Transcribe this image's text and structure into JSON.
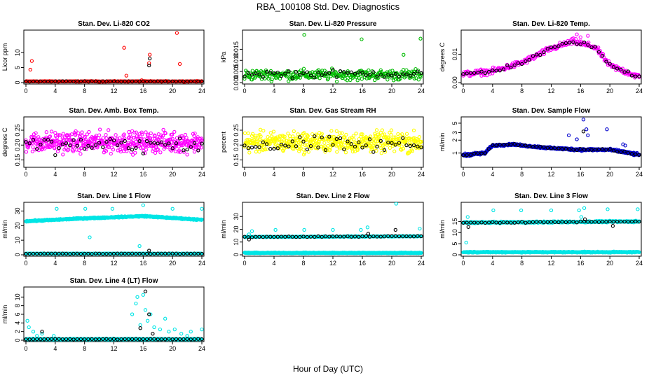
{
  "figure": {
    "title": "RBA_100108  Std. Dev. Diagnostics",
    "xlabel": "Hour of Day (UTC)"
  },
  "chart_data": [
    {
      "type": "scatter",
      "title": "Stan. Dev. Li-820 CO2",
      "ylabel": "Licor ppm",
      "xlim": [
        0,
        24
      ],
      "ylim": [
        0,
        17
      ],
      "x_ticks": [
        0,
        4,
        8,
        12,
        16,
        20,
        24
      ],
      "y_ticks": [
        0,
        5,
        10
      ],
      "series": [
        {
          "color": "#ff0000",
          "baseline": {
            "from": 0,
            "to": 24,
            "step": 0.083,
            "value": 0.4,
            "jitter": 0.15
          },
          "points": [
            [
              0.6,
              4.3
            ],
            [
              0.8,
              7.2
            ],
            [
              13.4,
              11.6
            ],
            [
              13.7,
              2.3
            ],
            [
              16.9,
              9.3
            ],
            [
              16.8,
              6.5
            ],
            [
              20.6,
              16.5
            ],
            [
              21.0,
              6.2
            ],
            [
              15.8,
              0.8
            ]
          ]
        },
        {
          "color": "#000000",
          "baseline": {
            "from": 0,
            "to": 24,
            "step": 0.5,
            "value": 0.4,
            "jitter": 0.1
          },
          "points": [
            [
              16.9,
              8.0
            ],
            [
              16.8,
              5.7
            ]
          ]
        }
      ]
    },
    {
      "type": "scatter",
      "title": "Stan. Dev. Li-820 Pressure",
      "ylabel": "kPa",
      "xlim": [
        0,
        24
      ],
      "ylim": [
        0,
        0.023
      ],
      "x_ticks": [
        0,
        4,
        8,
        12,
        16,
        20,
        24
      ],
      "y_ticks": [
        0.0,
        0.005,
        0.01,
        0.015
      ],
      "series": [
        {
          "color": "#00bb00",
          "baseline": {
            "from": 0,
            "to": 24,
            "step": 0.083,
            "value": 0.0035,
            "jitter": 0.0035
          },
          "points": [
            [
              8.1,
              0.0215
            ],
            [
              15.9,
              0.0195
            ],
            [
              21.6,
              0.0125
            ],
            [
              23.9,
              0.0198
            ]
          ]
        },
        {
          "color": "#000000",
          "baseline": {
            "from": 0,
            "to": 24,
            "step": 0.5,
            "value": 0.004,
            "jitter": 0.0025
          },
          "points": []
        }
      ]
    },
    {
      "type": "scatter",
      "title": "Stan. Dev. Li-820 Temp.",
      "ylabel": "degrees C",
      "xlim": [
        0,
        24
      ],
      "ylim": [
        0,
        0.018
      ],
      "x_ticks": [
        0,
        4,
        8,
        12,
        16,
        20,
        24
      ],
      "y_ticks": [
        0.0,
        0.01
      ],
      "series": [
        {
          "color": "#ff00ff",
          "curve": [
            [
              0,
              0.003
            ],
            [
              4,
              0.004
            ],
            [
              8,
              0.007
            ],
            [
              12,
              0.012
            ],
            [
              15,
              0.0145
            ],
            [
              18,
              0.0125
            ],
            [
              20,
              0.006
            ],
            [
              22,
              0.004
            ],
            [
              24,
              0.002
            ]
          ],
          "step": 0.083,
          "jitter": 0.0015,
          "points": [
            [
              15.5,
              0.017
            ],
            [
              17.0,
              0.0165
            ],
            [
              16.0,
              0.016
            ]
          ]
        },
        {
          "color": "#000000",
          "curve": [
            [
              0,
              0.003
            ],
            [
              4,
              0.004
            ],
            [
              8,
              0.007
            ],
            [
              12,
              0.012
            ],
            [
              15,
              0.0145
            ],
            [
              18,
              0.0125
            ],
            [
              20,
              0.006
            ],
            [
              22,
              0.004
            ],
            [
              24,
              0.002
            ]
          ],
          "step": 0.5,
          "jitter": 0.001,
          "points": []
        }
      ]
    },
    {
      "type": "scatter",
      "title": "Stan. Dev. Amb. Box Temp.",
      "ylabel": "degrees C",
      "xlim": [
        0,
        24
      ],
      "ylim": [
        0.13,
        0.29
      ],
      "x_ticks": [
        0,
        4,
        8,
        12,
        16,
        20,
        24
      ],
      "y_ticks": [
        0.15,
        0.2,
        0.25
      ],
      "series": [
        {
          "color": "#ff00ff",
          "baseline": {
            "from": 0,
            "to": 24,
            "step": 0.05,
            "value": 0.21,
            "jitter": 0.05
          },
          "points": []
        },
        {
          "color": "#000000",
          "baseline": {
            "from": 0,
            "to": 24,
            "step": 0.5,
            "value": 0.2,
            "jitter": 0.04
          },
          "points": []
        }
      ]
    },
    {
      "type": "scatter",
      "title": "Stan. Dev. Gas Stream RH",
      "ylabel": "percent",
      "xlim": [
        0,
        24
      ],
      "ylim": [
        0.13,
        0.29
      ],
      "x_ticks": [
        0,
        4,
        8,
        12,
        16,
        20,
        24
      ],
      "y_ticks": [
        0.15,
        0.2,
        0.25
      ],
      "series": [
        {
          "color": "#ffff00",
          "baseline": {
            "from": 0,
            "to": 24,
            "step": 0.05,
            "value": 0.21,
            "jitter": 0.05
          },
          "points": []
        },
        {
          "color": "#000000",
          "baseline": {
            "from": 0,
            "to": 24,
            "step": 0.5,
            "value": 0.2,
            "jitter": 0.04
          },
          "points": []
        }
      ]
    },
    {
      "type": "scatter",
      "title": "Stan. Dev. Sample Flow",
      "ylabel": "ml/min",
      "xlim": [
        0,
        24
      ],
      "ylim": [
        0.5,
        6.5
      ],
      "log_y": true,
      "x_ticks": [
        0,
        4,
        8,
        12,
        16,
        20,
        24
      ],
      "y_ticks": [
        1,
        2,
        3,
        5
      ],
      "series": [
        {
          "color": "#0000cc",
          "curve": [
            [
              0,
              0.9
            ],
            [
              3,
              1.0
            ],
            [
              4,
              1.5
            ],
            [
              7,
              1.6
            ],
            [
              8,
              1.5
            ],
            [
              12,
              1.3
            ],
            [
              16,
              1.2
            ],
            [
              20,
              1.2
            ],
            [
              24,
              0.9
            ]
          ],
          "step": 0.05,
          "jitter": 0.1,
          "points": [
            [
              14.4,
              2.6
            ],
            [
              15.5,
              2.1
            ],
            [
              16.4,
              6.1
            ],
            [
              16.8,
              3.6
            ],
            [
              17.0,
              2.6
            ],
            [
              19.6,
              3.6
            ],
            [
              21.8,
              1.6
            ],
            [
              22.1,
              1.5
            ]
          ]
        },
        {
          "color": "#000000",
          "curve": [
            [
              0,
              0.9
            ],
            [
              3,
              1.0
            ],
            [
              4,
              1.5
            ],
            [
              7,
              1.6
            ],
            [
              8,
              1.5
            ],
            [
              12,
              1.3
            ],
            [
              16,
              1.2
            ],
            [
              20,
              1.2
            ],
            [
              24,
              0.9
            ]
          ],
          "step": 0.5,
          "jitter": 0.06,
          "points": [
            [
              16.4,
              3.2
            ]
          ]
        }
      ]
    },
    {
      "type": "scatter",
      "title": "Stan. Dev. Line 1 Flow",
      "ylabel": "ml/min",
      "xlim": [
        0,
        24
      ],
      "ylim": [
        0,
        35
      ],
      "x_ticks": [
        0,
        4,
        8,
        12,
        16,
        20,
        24
      ],
      "y_ticks": [
        0,
        10,
        20,
        30
      ],
      "series": [
        {
          "color": "#00e5e5",
          "curve": [
            [
              0,
              23
            ],
            [
              8,
              25
            ],
            [
              16,
              26.5
            ],
            [
              24,
              24
            ]
          ],
          "step": 0.05,
          "jitter": 0.6,
          "points": [
            [
              4.2,
              31.5
            ],
            [
              8.1,
              31.5
            ],
            [
              8.7,
              12.0
            ],
            [
              11.8,
              31.5
            ],
            [
              16.0,
              34.0
            ],
            [
              20.0,
              31.5
            ],
            [
              24.0,
              31.5
            ],
            [
              15.5,
              6.0
            ]
          ]
        },
        {
          "color": "#00e5e5",
          "baseline": {
            "from": 0,
            "to": 24,
            "step": 0.083,
            "value": 0.8,
            "jitter": 0.2
          },
          "points": []
        },
        {
          "color": "#000000",
          "baseline": {
            "from": 0,
            "to": 24,
            "step": 0.5,
            "value": 0.8,
            "jitter": 0.2
          },
          "points": [
            [
              16.8,
              2.9
            ]
          ]
        }
      ]
    },
    {
      "type": "scatter",
      "title": "Stan. Dev. Line 2 Flow",
      "ylabel": "ml/min",
      "xlim": [
        0,
        24
      ],
      "ylim": [
        0,
        40
      ],
      "x_ticks": [
        0,
        4,
        8,
        12,
        16,
        20,
        24
      ],
      "y_ticks": [
        0,
        10,
        20,
        30
      ],
      "series": [
        {
          "color": "#00e5e5",
          "baseline": {
            "from": 0,
            "to": 24,
            "step": 0.05,
            "value": 1.5,
            "jitter": 0.5
          },
          "points": [
            [
              4.2,
              19.5
            ],
            [
              8.1,
              19.5
            ],
            [
              12.0,
              19.5
            ],
            [
              15.8,
              19.5
            ],
            [
              16.7,
              21.5
            ],
            [
              20.6,
              40.0
            ],
            [
              23.8,
              20.5
            ],
            [
              1.0,
              18.5
            ],
            [
              0.6,
              16.0
            ]
          ]
        },
        {
          "color": "#00e5e5",
          "curve": [
            [
              0,
              14
            ],
            [
              24,
              14.5
            ]
          ],
          "step": 0.083,
          "jitter": 0.4,
          "points": []
        },
        {
          "color": "#000000",
          "curve": [
            [
              0,
              14
            ],
            [
              24,
              14.5
            ]
          ],
          "step": 0.5,
          "jitter": 0.4,
          "points": [
            [
              0.6,
              12.0
            ],
            [
              16.8,
              16.5
            ],
            [
              20.5,
              19.5
            ]
          ]
        }
      ]
    },
    {
      "type": "scatter",
      "title": "Stan. Dev. Line 3 Flow",
      "ylabel": "ml/min",
      "xlim": [
        0,
        24
      ],
      "ylim": [
        0,
        23
      ],
      "x_ticks": [
        0,
        4,
        8,
        12,
        16,
        20,
        24
      ],
      "y_ticks": [
        0,
        5,
        10,
        15
      ],
      "series": [
        {
          "color": "#00e5e5",
          "curve": [
            [
              0,
              14.5
            ],
            [
              24,
              15
            ]
          ],
          "step": 0.05,
          "jitter": 0.5,
          "points": [
            [
              4.1,
              20.0
            ],
            [
              7.9,
              20.0
            ],
            [
              12.0,
              20.0
            ],
            [
              15.8,
              20.0
            ],
            [
              16.5,
              21.0
            ],
            [
              19.7,
              20.5
            ],
            [
              23.8,
              20.5
            ],
            [
              0.6,
              17.0
            ],
            [
              0.4,
              5.5
            ],
            [
              16.1,
              17.0
            ]
          ]
        },
        {
          "color": "#00e5e5",
          "baseline": {
            "from": 0,
            "to": 24,
            "step": 0.05,
            "value": 1.2,
            "jitter": 0.3
          },
          "points": []
        },
        {
          "color": "#000000",
          "curve": [
            [
              0,
              14.5
            ],
            [
              24,
              15
            ]
          ],
          "step": 0.5,
          "jitter": 0.3,
          "points": [
            [
              0.7,
              12.5
            ],
            [
              16.6,
              16.0
            ],
            [
              20.4,
              13.0
            ]
          ]
        }
      ]
    },
    {
      "type": "scatter",
      "title": "Stan. Dev. Line 4 (LT) Flow",
      "ylabel": "ml/min",
      "xlim": [
        0,
        24
      ],
      "ylim": [
        0,
        12
      ],
      "x_ticks": [
        0,
        4,
        8,
        12,
        16,
        20,
        24
      ],
      "y_ticks": [
        0,
        2,
        4,
        6,
        8,
        10
      ],
      "series": [
        {
          "color": "#00e5e5",
          "baseline": {
            "from": 0,
            "to": 24,
            "step": 0.05,
            "value": 0.25,
            "jitter": 0.15
          },
          "points": [
            [
              0.2,
              4.5
            ],
            [
              0.4,
              3.0
            ],
            [
              1.0,
              2.0
            ],
            [
              1.5,
              1.0
            ],
            [
              2.2,
              1.5
            ],
            [
              3.8,
              1.0
            ],
            [
              14.5,
              6.0
            ],
            [
              15.0,
              8.5
            ],
            [
              15.2,
              10.0
            ],
            [
              15.6,
              3.5
            ],
            [
              16.0,
              10.5
            ],
            [
              16.3,
              7.0
            ],
            [
              16.6,
              4.5
            ],
            [
              17.0,
              6.0
            ],
            [
              17.5,
              3.0
            ],
            [
              18.3,
              2.5
            ],
            [
              19.0,
              5.0
            ],
            [
              19.5,
              2.0
            ],
            [
              20.3,
              2.5
            ],
            [
              21.2,
              1.5
            ],
            [
              22.0,
              1.0
            ],
            [
              22.5,
              2.0
            ],
            [
              24.0,
              2.5
            ]
          ]
        },
        {
          "color": "#000000",
          "baseline": {
            "from": 0,
            "to": 24,
            "step": 0.5,
            "value": 0.25,
            "jitter": 0.1
          },
          "points": [
            [
              2.2,
              2.0
            ],
            [
              15.6,
              2.8
            ],
            [
              16.3,
              11.3
            ],
            [
              17.3,
              1.5
            ],
            [
              16.8,
              6.0
            ]
          ]
        }
      ]
    }
  ]
}
